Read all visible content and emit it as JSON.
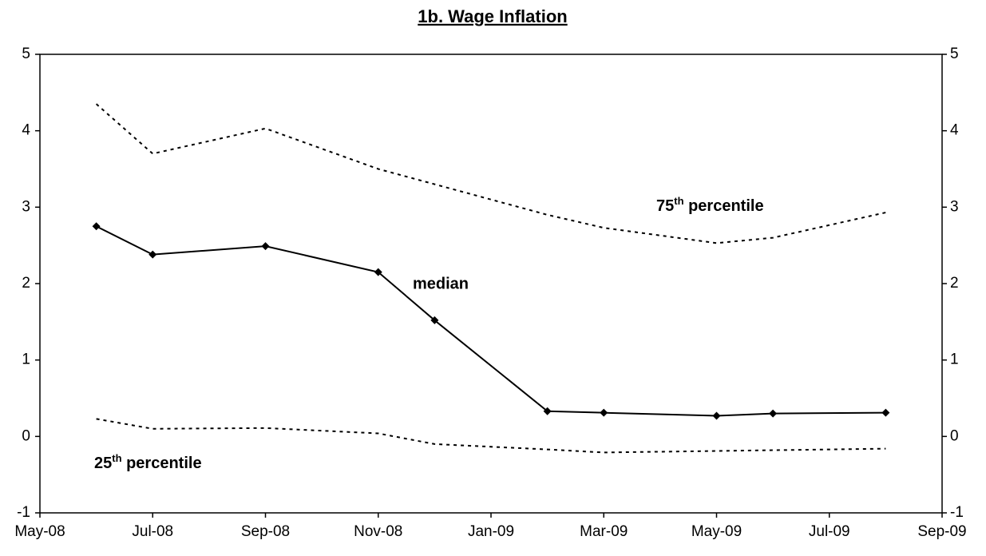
{
  "chart_data": {
    "type": "line",
    "title": "1b. Wage Inflation",
    "x": [
      "2008-06",
      "2008-07",
      "2008-09",
      "2008-11",
      "2008-12",
      "2009-02",
      "2009-03",
      "2009-05",
      "2009-06",
      "2009-08"
    ],
    "xlim": [
      "2008-05",
      "2009-09"
    ],
    "xticks": [
      {
        "value": "2008-05",
        "label": "May-08"
      },
      {
        "value": "2008-07",
        "label": "Jul-08"
      },
      {
        "value": "2008-09",
        "label": "Sep-08"
      },
      {
        "value": "2008-11",
        "label": "Nov-08"
      },
      {
        "value": "2009-01",
        "label": "Jan-09"
      },
      {
        "value": "2009-03",
        "label": "Mar-09"
      },
      {
        "value": "2009-05",
        "label": "May-09"
      },
      {
        "value": "2009-07",
        "label": "Jul-09"
      },
      {
        "value": "2009-09",
        "label": "Sep-09"
      }
    ],
    "ylim": [
      -1,
      5
    ],
    "yticks": [
      -1,
      0,
      1,
      2,
      3,
      4,
      5
    ],
    "y2lim": [
      -1,
      5
    ],
    "y2ticks": [
      -1,
      0,
      1,
      2,
      3,
      4,
      5
    ],
    "grid": false,
    "series": [
      {
        "name": "median",
        "color": "#000000",
        "style": "solid",
        "marker": "diamond",
        "values": [
          2.75,
          2.38,
          2.49,
          2.15,
          1.52,
          0.33,
          0.31,
          0.27,
          0.3,
          0.31
        ]
      },
      {
        "name": "75th percentile",
        "color": "#000000",
        "style": "dotted",
        "marker": "none",
        "values": [
          4.35,
          3.7,
          4.03,
          3.5,
          3.3,
          2.9,
          2.73,
          2.53,
          2.6,
          2.93
        ]
      },
      {
        "name": "25th percentile",
        "color": "#000000",
        "style": "dotted",
        "marker": "none",
        "values": [
          0.23,
          0.1,
          0.11,
          0.04,
          -0.1,
          -0.17,
          -0.21,
          -0.19,
          -0.18,
          -0.16
        ]
      }
    ]
  }
}
